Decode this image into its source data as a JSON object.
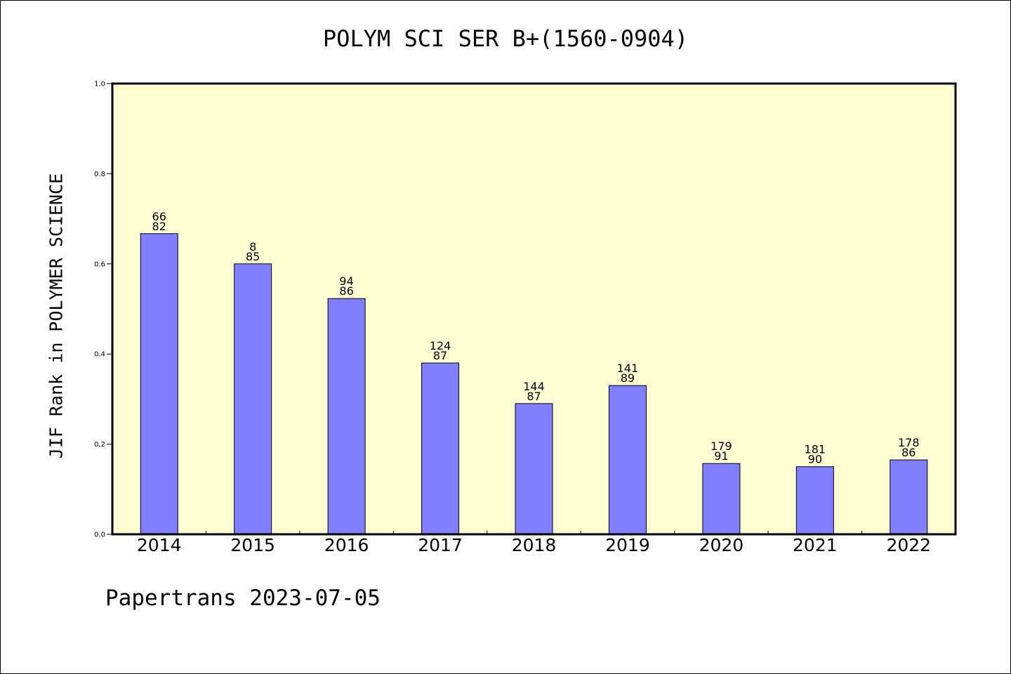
{
  "chart_data": {
    "type": "bar",
    "title": "POLYM SCI SER B+(1560-0904)",
    "ylabel": "JIF Rank in POLYMER SCIENCE",
    "xlabel": "",
    "ylim": [
      0,
      1.0
    ],
    "yticks": [
      "0.0",
      "0.2",
      "0.4",
      "0.6",
      "0.8",
      "1.0"
    ],
    "categories": [
      "2014",
      "2015",
      "2016",
      "2017",
      "2018",
      "2019",
      "2020",
      "2021",
      "2022"
    ],
    "values": [
      0.667,
      0.6,
      0.523,
      0.38,
      0.29,
      0.33,
      0.157,
      0.15,
      0.165
    ],
    "labels_top": [
      "66",
      "8",
      "94",
      "124",
      "144",
      "141",
      "179",
      "181",
      "178"
    ],
    "labels_bottom": [
      "82",
      "85",
      "86",
      "87",
      "87",
      "89",
      "91",
      "90",
      "86"
    ],
    "grid": false,
    "colors": {
      "plot_background": "#ffffd4",
      "bar": "#8080ff",
      "bar_edge": "#000000"
    }
  },
  "footer": "Papertrans 2023-07-05"
}
